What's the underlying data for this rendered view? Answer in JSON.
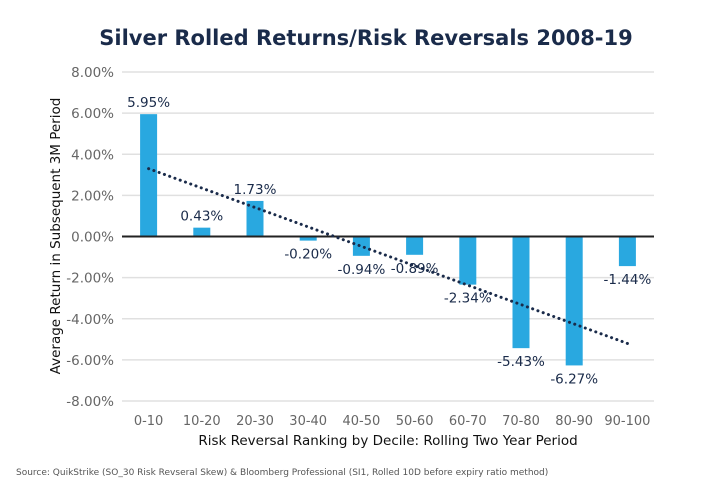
{
  "chart_data": {
    "type": "bar",
    "title": "Silver Rolled Returns/Risk Reversals 2008-19",
    "xlabel": "Risk Reversal Ranking by Decile: Rolling Two Year Period",
    "ylabel": "Average Return in Subsequent 3M Period",
    "categories": [
      "0-10",
      "10-20",
      "20-30",
      "30-40",
      "40-50",
      "50-60",
      "60-70",
      "70-80",
      "80-90",
      "90-100"
    ],
    "values": [
      5.95,
      0.43,
      1.73,
      -0.2,
      -0.94,
      -0.89,
      -2.34,
      -5.43,
      -6.27,
      -1.44
    ],
    "data_labels": [
      "5.95%",
      "0.43%",
      "1.73%",
      "-0.20%",
      "-0.94%",
      "-0.89%",
      "-2.34%",
      "-5.43%",
      "-6.27%",
      "-1.44%"
    ],
    "ylim": [
      -8,
      8
    ],
    "yticks": [
      8,
      6,
      4,
      2,
      0,
      -2,
      -4,
      -6,
      -8
    ],
    "ytick_labels": [
      "8.00%",
      "6.00%",
      "4.00%",
      "2.00%",
      "0.00%",
      "-2.00%",
      "-4.00%",
      "-6.00%",
      "-8.00%"
    ],
    "grid": true,
    "legend": "none",
    "trendline": {
      "type": "linear",
      "style": "dotted",
      "start": 3.3,
      "end": -5.2
    },
    "colors": {
      "bar": "#29a8e0",
      "title": "#1a2b4a",
      "trendline": "#1a2b4a",
      "grid": "#e0e0e0",
      "zero_line": "#222222"
    }
  },
  "source": "Source: QuikStrike (SO_30 Risk Revseral Skew) & Bloomberg Professional (SI1, Rolled 10D before expiry ratio method)"
}
